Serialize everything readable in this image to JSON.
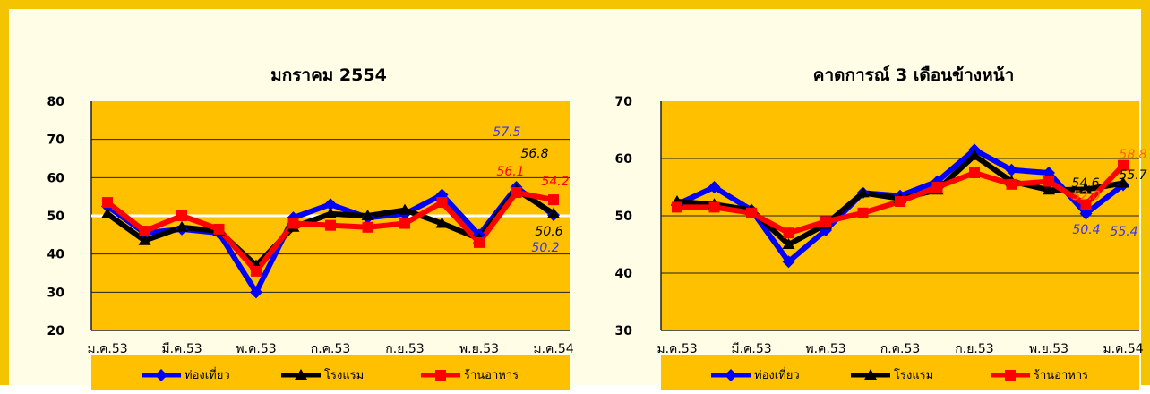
{
  "chart_data": [
    {
      "type": "line",
      "title": "มกราคม 2554",
      "ylim": [
        20,
        80
      ],
      "yticks": [
        "20",
        "30",
        "40",
        "50",
        "60",
        "70",
        "80"
      ],
      "x_tick_labels": [
        "ม.ค.53",
        "มี.ค.53",
        "พ.ค.53",
        "ก.ค.53",
        "ก.ย.53",
        "พ.ย.53",
        "ม.ค.54"
      ],
      "highlight_tick_color": "#3333ff",
      "reference_line": 50,
      "plot_bg": "#ffc000",
      "series": [
        {
          "name": "ท่องเที่ยว",
          "color": "#0000ff",
          "marker": "diamond",
          "values": [
            52.5,
            45.5,
            46.5,
            45.5,
            30.0,
            49.5,
            53.0,
            49.5,
            50.5,
            55.5,
            45.0,
            57.5,
            50.2
          ]
        },
        {
          "name": "โรงแรม",
          "color": "#000000",
          "marker": "triangle",
          "values": [
            50.5,
            43.5,
            47.0,
            46.0,
            37.0,
            47.0,
            50.5,
            50.0,
            51.5,
            48.0,
            44.0,
            56.8,
            50.6
          ]
        },
        {
          "name": "ร้านอาหาร",
          "color": "#ff0000",
          "marker": "square",
          "values": [
            53.5,
            46.0,
            50.0,
            46.5,
            35.5,
            48.0,
            47.5,
            47.0,
            48.0,
            53.5,
            43.0,
            56.1,
            54.2
          ]
        }
      ],
      "data_labels": [
        {
          "text": "57.5",
          "color": "#3333ff"
        },
        {
          "text": "56.8",
          "color": "#000000"
        },
        {
          "text": "56.1",
          "color": "#ff0000"
        },
        {
          "text": "54.2",
          "color": "#ff0000"
        },
        {
          "text": "50.6",
          "color": "#000000"
        },
        {
          "text": "50.2",
          "color": "#3333ff"
        }
      ]
    },
    {
      "type": "line",
      "title": "คาดการณ์ 3 เดือนข้างหน้า",
      "ylim": [
        30,
        70
      ],
      "yticks": [
        "30",
        "40",
        "50",
        "60",
        "70"
      ],
      "x_tick_labels": [
        "ม.ค.53",
        "มี.ค.53",
        "พ.ค.53",
        "ก.ค.53",
        "ก.ย.53",
        "พ.ย.53",
        "ม.ค.54"
      ],
      "highlight_tick_color": "#3333ff",
      "plot_bg": "#ffc000",
      "series": [
        {
          "name": "ท่องเที่ยว",
          "color": "#0000ff",
          "marker": "diamond",
          "values": [
            52.0,
            55.0,
            51.0,
            42.0,
            47.5,
            54.0,
            53.5,
            56.0,
            61.5,
            58.0,
            57.5,
            50.4,
            55.4
          ]
        },
        {
          "name": "โรงแรม",
          "color": "#000000",
          "marker": "triangle",
          "values": [
            52.5,
            52.0,
            51.0,
            45.0,
            48.5,
            54.0,
            53.0,
            54.5,
            60.5,
            56.0,
            54.5,
            54.6,
            55.7
          ]
        },
        {
          "name": "ร้านอาหาร",
          "color": "#ff0000",
          "marker": "square",
          "values": [
            51.5,
            51.5,
            50.5,
            47.0,
            49.0,
            50.5,
            52.5,
            55.0,
            57.5,
            55.5,
            56.0,
            52.0,
            58.8
          ]
        }
      ],
      "data_labels": [
        {
          "text": "58.8",
          "color": "#ff6600"
        },
        {
          "text": "54.6",
          "color": "#000000"
        },
        {
          "text": "55.7",
          "color": "#000000"
        },
        {
          "text": "52.0",
          "color": "#ff6600"
        },
        {
          "text": "50.4",
          "color": "#3333ff"
        },
        {
          "text": "55.4",
          "color": "#3333ff"
        }
      ]
    }
  ]
}
